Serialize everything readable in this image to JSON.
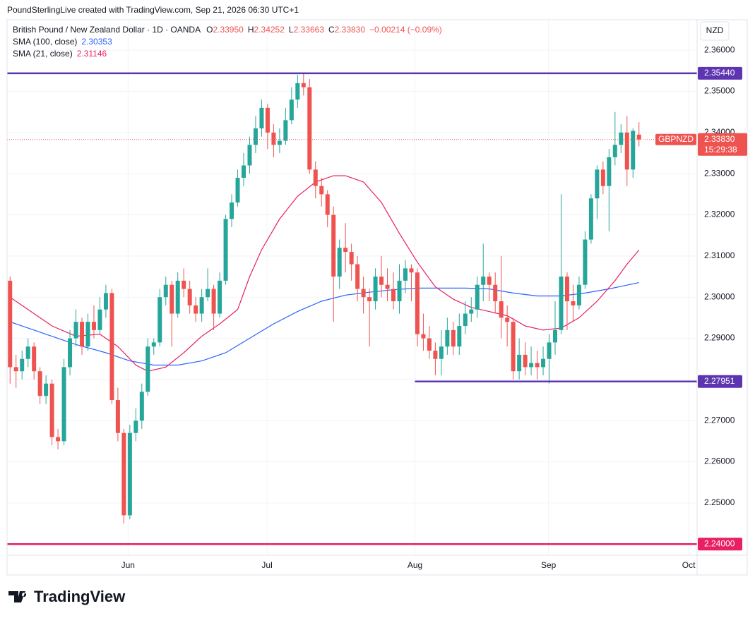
{
  "attribution": "PoundSterlingLive created with TradingView.com, Sep 21, 2026 06:30 UTC+1",
  "brand": "TradingView",
  "chart_data": {
    "type": "candlestick",
    "title": "British Pound / New Zealand Dollar · 1D · OANDA",
    "ohlc_labels": [
      {
        "key": "O",
        "value": "2.33950"
      },
      {
        "key": "H",
        "value": "2.34252"
      },
      {
        "key": "L",
        "value": "2.33663"
      },
      {
        "key": "C",
        "value": "2.33830"
      }
    ],
    "change": "−0.00214 (−0.09%)",
    "currency": "NZD",
    "up_color": "#26a69a",
    "down_color": "#ef5350",
    "open": [
      2.304,
      2.283,
      2.282,
      2.285,
      2.288,
      2.282,
      2.276,
      2.279,
      2.266,
      2.265,
      2.283,
      2.29,
      2.294,
      2.288,
      2.294,
      2.292,
      2.297,
      2.301,
      2.275,
      2.267,
      2.247,
      2.267,
      2.27,
      2.277,
      2.288,
      2.289,
      2.3,
      2.303,
      2.296,
      2.304,
      2.302,
      2.298,
      2.296,
      2.3,
      2.302,
      2.296,
      2.304,
      2.319,
      2.323,
      2.329,
      2.332,
      2.337,
      2.341,
      2.346,
      2.34,
      2.337,
      2.338,
      2.343,
      2.348,
      2.352,
      2.351,
      2.331,
      2.327,
      2.325,
      2.32,
      2.305,
      2.312,
      2.311,
      2.308,
      2.302,
      2.3,
      2.299,
      2.305,
      2.303,
      2.302,
      2.299,
      2.304,
      2.307,
      2.306,
      2.291,
      2.29,
      2.287,
      2.285,
      2.288,
      2.292,
      2.288,
      2.293,
      2.296,
      2.297,
      2.303,
      2.305,
      2.303,
      2.299,
      2.295,
      2.294,
      2.282,
      2.286,
      2.283,
      2.284,
      2.283,
      2.285,
      2.289,
      2.292,
      2.305,
      2.299,
      2.298,
      2.303,
      2.314,
      2.324,
      2.331,
      2.327,
      2.334,
      2.337,
      2.34,
      2.331,
      2.3395
    ],
    "high": [
      2.305,
      2.286,
      2.287,
      2.29,
      2.289,
      2.283,
      2.281,
      2.28,
      2.268,
      2.285,
      2.292,
      2.297,
      2.295,
      2.296,
      2.298,
      2.3,
      2.303,
      2.302,
      2.278,
      2.268,
      2.269,
      2.273,
      2.279,
      2.29,
      2.29,
      2.302,
      2.305,
      2.304,
      2.306,
      2.307,
      2.304,
      2.3,
      2.302,
      2.307,
      2.303,
      2.306,
      2.32,
      2.325,
      2.331,
      2.335,
      2.339,
      2.344,
      2.348,
      2.347,
      2.342,
      2.341,
      2.346,
      2.351,
      2.354,
      2.3545,
      2.353,
      2.333,
      2.329,
      2.326,
      2.322,
      2.314,
      2.318,
      2.313,
      2.31,
      2.305,
      2.302,
      2.307,
      2.31,
      2.307,
      2.306,
      2.308,
      2.309,
      2.308,
      2.307,
      2.296,
      2.293,
      2.289,
      2.292,
      2.295,
      2.294,
      2.296,
      2.299,
      2.3,
      2.305,
      2.313,
      2.306,
      2.306,
      2.31,
      2.298,
      2.295,
      2.29,
      2.289,
      2.288,
      2.287,
      2.288,
      2.291,
      2.299,
      2.325,
      2.306,
      2.303,
      2.305,
      2.316,
      2.325,
      2.332,
      2.333,
      2.336,
      2.345,
      2.342,
      2.344,
      2.341,
      2.34252
    ],
    "low": [
      2.279,
      2.278,
      2.28,
      2.283,
      2.28,
      2.274,
      2.274,
      2.264,
      2.263,
      2.264,
      2.281,
      2.288,
      2.286,
      2.287,
      2.29,
      2.291,
      2.295,
      2.274,
      2.265,
      2.245,
      2.246,
      2.265,
      2.268,
      2.276,
      2.286,
      2.288,
      2.298,
      2.288,
      2.295,
      2.3,
      2.296,
      2.294,
      2.294,
      2.299,
      2.292,
      2.295,
      2.303,
      2.317,
      2.322,
      2.327,
      2.33,
      2.335,
      2.339,
      2.336,
      2.334,
      2.335,
      2.337,
      2.342,
      2.346,
      2.349,
      2.33,
      2.324,
      2.322,
      2.317,
      2.294,
      2.302,
      2.306,
      2.304,
      2.299,
      2.296,
      2.288,
      2.297,
      2.3,
      2.299,
      2.297,
      2.296,
      2.301,
      2.299,
      2.288,
      2.287,
      2.285,
      2.281,
      2.281,
      2.286,
      2.286,
      2.286,
      2.291,
      2.294,
      2.295,
      2.299,
      2.299,
      2.296,
      2.29,
      2.288,
      2.28,
      2.28,
      2.281,
      2.281,
      2.28,
      2.281,
      2.279,
      2.286,
      2.291,
      2.292,
      2.294,
      2.297,
      2.302,
      2.313,
      2.319,
      2.325,
      2.316,
      2.332,
      2.335,
      2.327,
      2.329,
      2.33663
    ],
    "close": [
      2.283,
      2.282,
      2.285,
      2.288,
      2.282,
      2.276,
      2.279,
      2.266,
      2.265,
      2.283,
      2.29,
      2.294,
      2.288,
      2.294,
      2.292,
      2.297,
      2.301,
      2.275,
      2.267,
      2.247,
      2.267,
      2.27,
      2.277,
      2.288,
      2.289,
      2.3,
      2.303,
      2.296,
      2.304,
      2.302,
      2.298,
      2.296,
      2.3,
      2.302,
      2.296,
      2.304,
      2.319,
      2.323,
      2.329,
      2.332,
      2.337,
      2.341,
      2.346,
      2.34,
      2.337,
      2.338,
      2.343,
      2.348,
      2.352,
      2.351,
      2.331,
      2.327,
      2.325,
      2.32,
      2.305,
      2.312,
      2.311,
      2.308,
      2.302,
      2.3,
      2.299,
      2.305,
      2.303,
      2.302,
      2.299,
      2.304,
      2.307,
      2.306,
      2.291,
      2.29,
      2.287,
      2.285,
      2.288,
      2.292,
      2.288,
      2.293,
      2.296,
      2.297,
      2.303,
      2.305,
      2.303,
      2.299,
      2.295,
      2.294,
      2.282,
      2.286,
      2.283,
      2.284,
      2.283,
      2.285,
      2.289,
      2.292,
      2.305,
      2.299,
      2.298,
      2.303,
      2.314,
      2.324,
      2.331,
      2.327,
      2.334,
      2.337,
      2.34,
      2.331,
      2.3404,
      2.3383
    ],
    "series": [
      {
        "name": "SMA (100, close)",
        "color": "#2962ff",
        "value_label": "2.30353",
        "x": [
          0,
          5,
          11,
          16,
          20,
          24,
          28,
          32,
          36,
          40,
          44,
          48,
          52,
          56,
          60,
          64,
          68,
          72,
          76,
          80,
          84,
          88,
          92,
          96,
          100,
          105
        ],
        "values": [
          2.294,
          2.2915,
          2.2885,
          2.2865,
          2.2845,
          2.2835,
          2.2835,
          2.2845,
          2.2865,
          2.29,
          2.2935,
          2.2965,
          2.299,
          2.3005,
          2.3012,
          2.3018,
          2.3022,
          2.3022,
          2.3022,
          2.302,
          2.301,
          2.3003,
          2.3003,
          2.301,
          2.302,
          2.30353
        ]
      },
      {
        "name": "SMA (21, close)",
        "color": "#e91e63",
        "value_label": "2.31146",
        "x": [
          0,
          3,
          7,
          11,
          15,
          18,
          21,
          23,
          26,
          29,
          32,
          35,
          38,
          40,
          42,
          45,
          48,
          51,
          54,
          56,
          59,
          62,
          65,
          68,
          71,
          74,
          77,
          80,
          83,
          86,
          89,
          92,
          95,
          98,
          101,
          103,
          105
        ],
        "values": [
          2.3,
          2.297,
          2.293,
          2.2905,
          2.291,
          2.288,
          2.2835,
          2.282,
          2.283,
          2.2865,
          2.2905,
          2.2935,
          2.297,
          2.305,
          2.3115,
          2.319,
          2.3245,
          2.328,
          2.3295,
          2.3295,
          2.328,
          2.323,
          2.3155,
          2.3085,
          2.3025,
          2.2995,
          2.2975,
          2.2965,
          2.2955,
          2.293,
          2.292,
          2.2925,
          2.295,
          2.299,
          2.304,
          2.308,
          2.31146
        ]
      }
    ],
    "levels": [
      {
        "value": 2.3544,
        "label": "2.35440",
        "color": "#5e35b1"
      },
      {
        "value": 2.27951,
        "label": "2.27951",
        "color": "#5e35b1"
      },
      {
        "value": 2.24,
        "label": "2.24000",
        "color": "#e91e63"
      }
    ],
    "last_price": {
      "symbol": "GBPNZD",
      "label": "2.33830",
      "countdown": "15:29:38",
      "color": "#ef5350"
    },
    "xlim": [
      -0.5,
      114.7
    ],
    "xticks": [
      {
        "value": 19.7,
        "label": "Jun"
      },
      {
        "value": 42.9,
        "label": "Jul"
      },
      {
        "value": 67.6,
        "label": "Aug"
      },
      {
        "value": 89.9,
        "label": "Sep"
      },
      {
        "value": 113.3,
        "label": "Oct"
      }
    ],
    "ylim": [
      2.2373,
      2.3674
    ],
    "yticks": [
      {
        "value": 2.25,
        "label": "2.25000"
      },
      {
        "value": 2.26,
        "label": "2.26000"
      },
      {
        "value": 2.27,
        "label": "2.27000"
      },
      {
        "value": 2.28,
        "label": "2.28000"
      },
      {
        "value": 2.29,
        "label": "2.29000"
      },
      {
        "value": 2.3,
        "label": "2.30000"
      },
      {
        "value": 2.31,
        "label": "2.31000"
      },
      {
        "value": 2.32,
        "label": "2.32000"
      },
      {
        "value": 2.33,
        "label": "2.33000"
      },
      {
        "value": 2.34,
        "label": "2.34000"
      },
      {
        "value": 2.35,
        "label": "2.35000"
      },
      {
        "value": 2.36,
        "label": "2.36000"
      }
    ],
    "grid": true
  }
}
